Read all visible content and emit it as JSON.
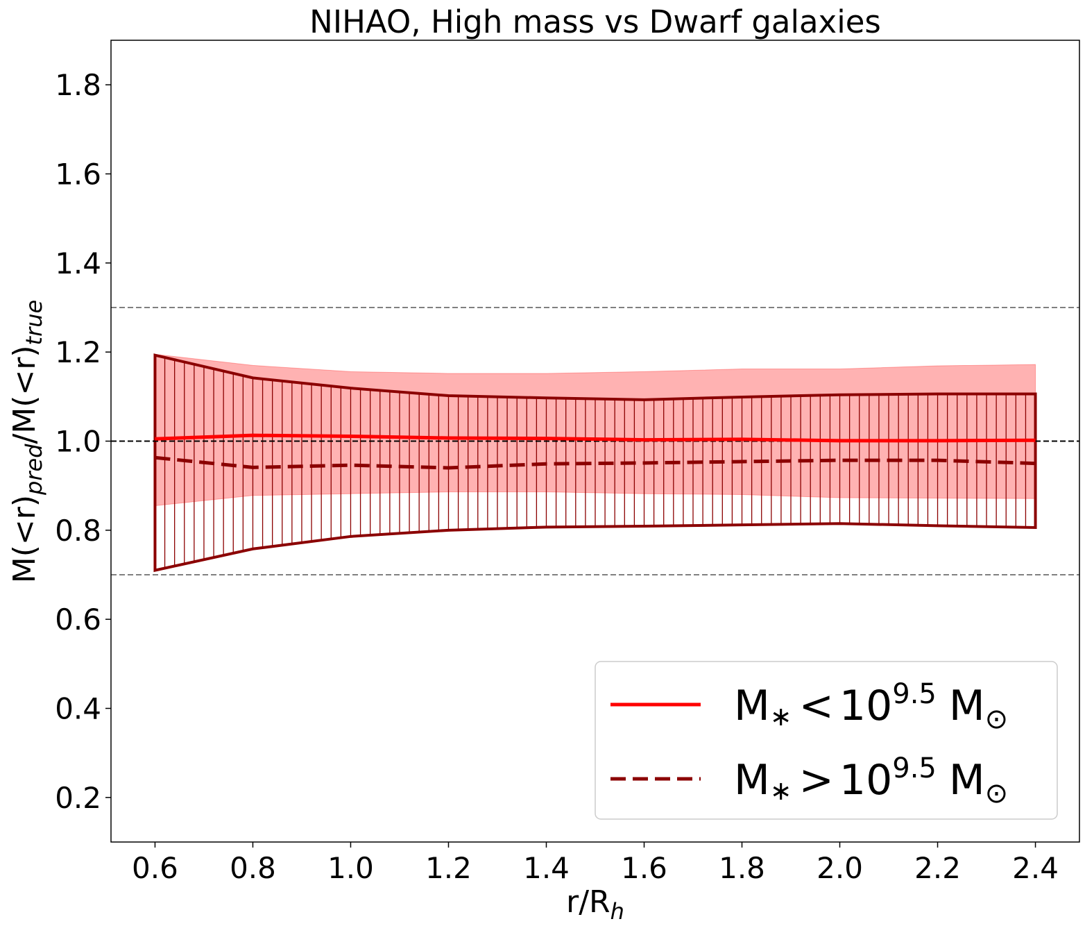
{
  "chart_data": {
    "type": "line",
    "title": "NIHAO, High mass vs Dwarf galaxies",
    "xlabel": {
      "main": "r/R",
      "sub": "h"
    },
    "ylabel": {
      "p1": "M(<r)",
      "sub1": "pred",
      "p2": "/M(<r)",
      "sub2": "true"
    },
    "xlim": [
      0.51,
      2.49
    ],
    "ylim": [
      0.1,
      1.9
    ],
    "xticks": [
      0.6,
      0.8,
      1.0,
      1.2,
      1.4,
      1.6,
      1.8,
      2.0,
      2.2,
      2.4
    ],
    "xtick_labels": [
      "0.6",
      "0.8",
      "1.0",
      "1.2",
      "1.4",
      "1.6",
      "1.8",
      "2.0",
      "2.2",
      "2.4"
    ],
    "yticks": [
      0.2,
      0.4,
      0.6,
      0.8,
      1.0,
      1.2,
      1.4,
      1.6,
      1.8
    ],
    "ytick_labels": [
      "0.2",
      "0.4",
      "0.6",
      "0.8",
      "1.0",
      "1.2",
      "1.4",
      "1.6",
      "1.8"
    ],
    "x": [
      0.6,
      0.8,
      1.0,
      1.2,
      1.4,
      1.6,
      1.8,
      2.0,
      2.2,
      2.4
    ],
    "reference_lines": [
      {
        "y": 1.0,
        "style": "dashed",
        "color": "#000000"
      },
      {
        "y": 1.3,
        "style": "dashed",
        "color": "#808080"
      },
      {
        "y": 0.7,
        "style": "dashed",
        "color": "#808080"
      }
    ],
    "series": [
      {
        "name": "M* < 10^9.5 M☉",
        "color": "#ff0000",
        "linestyle": "solid",
        "values": [
          1.005,
          1.013,
          1.011,
          1.007,
          1.006,
          1.003,
          1.004,
          1.001,
          1.001,
          1.002
        ],
        "band_lower": [
          0.855,
          0.878,
          0.882,
          0.886,
          0.886,
          0.882,
          0.88,
          0.873,
          0.872,
          0.871
        ],
        "band_upper": [
          1.195,
          1.17,
          1.156,
          1.152,
          1.152,
          1.156,
          1.162,
          1.162,
          1.169,
          1.172
        ],
        "band_fill": "#ff0000",
        "band_opacity": 0.3
      },
      {
        "name": "M* > 10^9.5 M☉",
        "color": "#8b0000",
        "linestyle": "dashed",
        "values": [
          0.963,
          0.941,
          0.946,
          0.94,
          0.949,
          0.951,
          0.954,
          0.957,
          0.957,
          0.95
        ],
        "band_lower": [
          0.71,
          0.758,
          0.786,
          0.8,
          0.807,
          0.809,
          0.812,
          0.815,
          0.81,
          0.806
        ],
        "band_upper": [
          1.193,
          1.142,
          1.119,
          1.102,
          1.097,
          1.093,
          1.099,
          1.104,
          1.106,
          1.106
        ],
        "band_style": "vertical-hatch"
      }
    ],
    "legend": {
      "position": "lower-right",
      "entries": [
        {
          "label": {
            "m": "M",
            "star": "∗",
            "op": "<",
            "base": "10",
            "exp": "9.5",
            "unit": "M",
            "sun": "⊙"
          }
        },
        {
          "label": {
            "m": "M",
            "star": "∗",
            "op": ">",
            "base": "10",
            "exp": "9.5",
            "unit": "M",
            "sun": "⊙"
          }
        }
      ]
    }
  }
}
